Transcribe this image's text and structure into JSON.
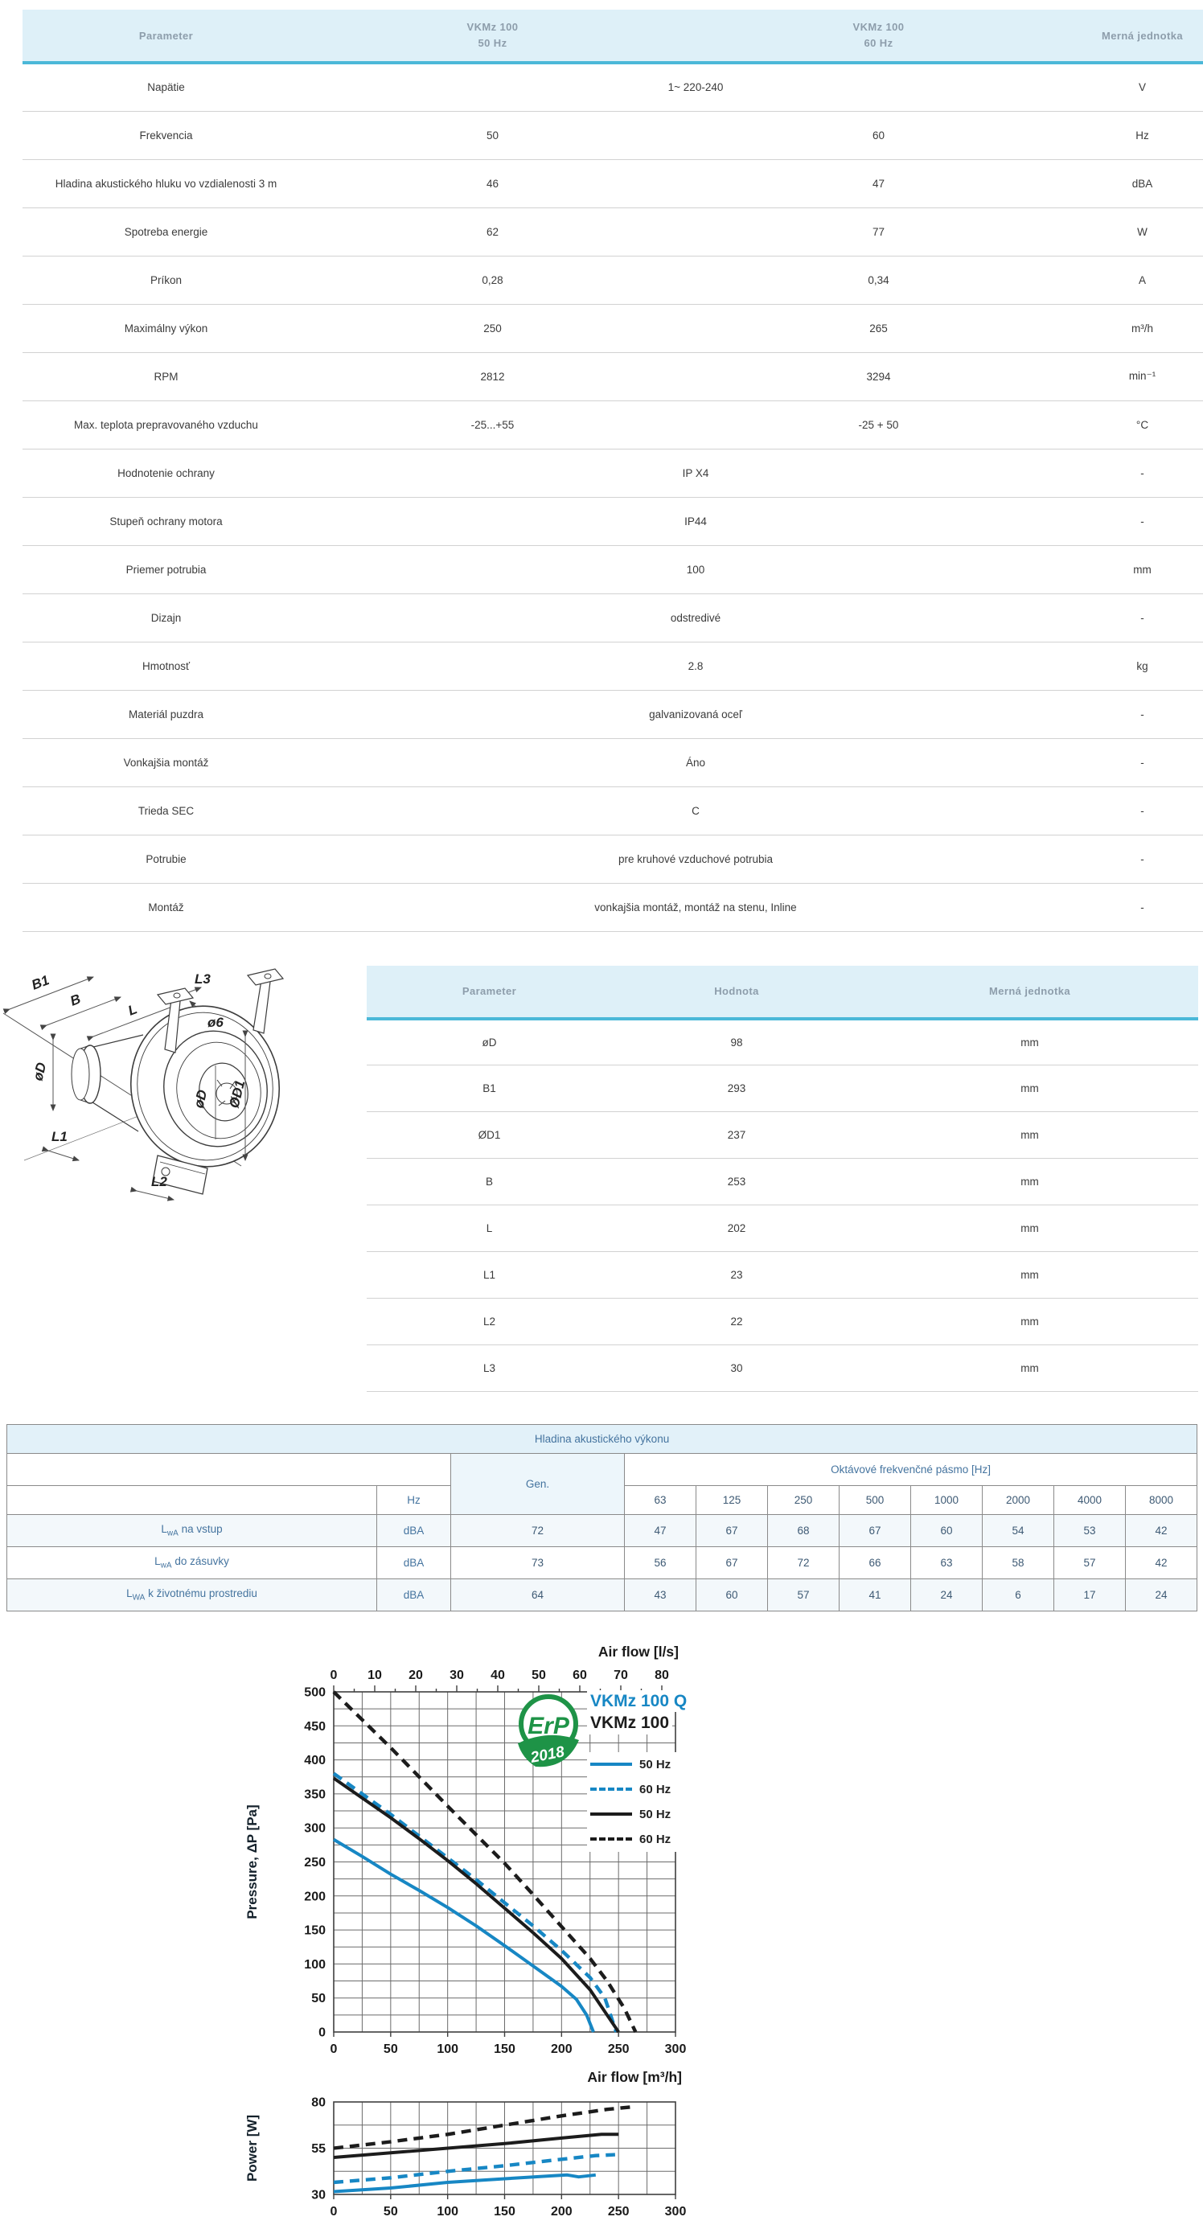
{
  "colors": {
    "accent_teal": "#4bb8d8",
    "header_bg": "#def0f8",
    "header_text": "#8d9dab",
    "blue_text": "#45749f",
    "chart_blue": "#1787c4",
    "chart_black": "#1c1c1c",
    "erp_green": "#1e9347"
  },
  "main_table": {
    "headers": {
      "param": "Parameter",
      "col50_line1": "VKMz 100",
      "col50_line2": "50 Hz",
      "col60_line1": "VKMz 100",
      "col60_line2": "60 Hz",
      "unit": "Merná jednotka"
    },
    "rows": [
      {
        "param": "Napätie",
        "value": "1~ 220-240",
        "unit": "V"
      },
      {
        "param": "Frekvencia",
        "v50": "50",
        "v60": "60",
        "unit": "Hz"
      },
      {
        "param": "Hladina akustického hluku vo vzdialenosti 3 m",
        "v50": "46",
        "v60": "47",
        "unit": "dBA"
      },
      {
        "param": "Spotreba energie",
        "v50": "62",
        "v60": "77",
        "unit": "W"
      },
      {
        "param": "Príkon",
        "v50": "0,28",
        "v60": "0,34",
        "unit": "A"
      },
      {
        "param": "Maximálny výkon",
        "v50": "250",
        "v60": "265",
        "unit": "m³/h"
      },
      {
        "param": "RPM",
        "v50": "2812",
        "v60": "3294",
        "unit": "min⁻¹"
      },
      {
        "param": "Max. teplota prepravovaného vzduchu",
        "v50": "-25...+55",
        "v60": "-25 + 50",
        "unit": "°C"
      },
      {
        "param": "Hodnotenie ochrany",
        "value": "IP X4",
        "unit": "-"
      },
      {
        "param": "Stupeň ochrany motora",
        "value": "IP44",
        "unit": "-"
      },
      {
        "param": "Priemer potrubia",
        "value": "100",
        "unit": "mm"
      },
      {
        "param": "Dizajn",
        "value": "odstredivé",
        "unit": "-"
      },
      {
        "param": "Hmotnosť",
        "value": "2.8",
        "unit": "kg"
      },
      {
        "param": "Materiál puzdra",
        "value": "galvanizovaná oceľ",
        "unit": "-"
      },
      {
        "param": "Vonkajšia montáž",
        "value": "Áno",
        "unit": "-"
      },
      {
        "param": "Trieda SEC",
        "value": "C",
        "unit": "-"
      },
      {
        "param": "Potrubie",
        "value": "pre kruhové vzduchové potrubia",
        "unit": "-"
      },
      {
        "param": "Montáž",
        "value": "vonkajšia montáž, montáž na stenu, Inline",
        "unit": "-"
      }
    ]
  },
  "dims_section": {
    "drawing_labels": [
      "B1",
      "B",
      "L",
      "L3",
      "ø6",
      "øD",
      "øD",
      "ØD1",
      "L1",
      "L2"
    ],
    "table": {
      "headers": {
        "param": "Parameter",
        "value": "Hodnota",
        "unit": "Merná jednotka"
      },
      "rows": [
        {
          "param": "øD",
          "value": "98",
          "unit": "mm"
        },
        {
          "param": "B1",
          "value": "293",
          "unit": "mm"
        },
        {
          "param": "ØD1",
          "value": "237",
          "unit": "mm"
        },
        {
          "param": "B",
          "value": "253",
          "unit": "mm"
        },
        {
          "param": "L",
          "value": "202",
          "unit": "mm"
        },
        {
          "param": "L1",
          "value": "23",
          "unit": "mm"
        },
        {
          "param": "L2",
          "value": "22",
          "unit": "mm"
        },
        {
          "param": "L3",
          "value": "30",
          "unit": "mm"
        }
      ]
    }
  },
  "acoustic": {
    "title": "Hladina akustického výkonu",
    "octave_header": "Oktávové frekvenčné pásmo [Hz]",
    "gen_label": "Gen.",
    "hz_label": "Hz",
    "bands": [
      "63",
      "125",
      "250",
      "500",
      "1000",
      "2000",
      "4000",
      "8000"
    ],
    "rows": [
      {
        "l": "L",
        "sub": "wA",
        "rest": "na vstup",
        "unit": "dBA",
        "gen": "72",
        "bands": [
          "47",
          "67",
          "68",
          "67",
          "60",
          "54",
          "53",
          "42"
        ]
      },
      {
        "l": "L",
        "sub": "wA",
        "rest": "do zásuvky",
        "unit": "dBA",
        "gen": "73",
        "bands": [
          "56",
          "67",
          "72",
          "66",
          "63",
          "58",
          "57",
          "42"
        ]
      },
      {
        "l": "L",
        "sub": "WA",
        "rest": "k životnému prostrediu",
        "unit": "dBA",
        "gen": "64",
        "bands": [
          "43",
          "60",
          "57",
          "41",
          "24",
          "6",
          "17",
          "24"
        ]
      }
    ]
  },
  "legend": {
    "model_q": "VKMz 100 Q",
    "model": "VKMz 100",
    "items": [
      {
        "label": "50 Hz",
        "color": "#1787c4",
        "style": "solid"
      },
      {
        "label": "60 Hz",
        "color": "#1787c4",
        "style": "dashed"
      },
      {
        "label": "50 Hz",
        "color": "#1c1c1c",
        "style": "solid"
      },
      {
        "label": "60 Hz",
        "color": "#1c1c1c",
        "style": "dashed"
      }
    ]
  },
  "erp": {
    "text": "ErP",
    "year": "2018"
  },
  "chart_data": [
    {
      "type": "line",
      "title": "Pressure vs air flow",
      "xlabel_top": "Air flow [l/s]",
      "xlabel": "Air flow [m³/h]",
      "ylabel": "Pressure, ΔP [Pa]",
      "xlim": [
        0,
        300
      ],
      "ylim": [
        0,
        500
      ],
      "x_ticks": [
        0,
        50,
        100,
        150,
        200,
        250,
        300
      ],
      "y_ticks": [
        0,
        50,
        100,
        150,
        200,
        250,
        300,
        350,
        400,
        450,
        500
      ],
      "grid_step_x": 25,
      "grid_step_y": 25,
      "grid": true,
      "legend_position": "top-right",
      "top_axis": {
        "ticks": [
          0,
          10,
          20,
          30,
          40,
          50,
          60,
          70,
          80
        ],
        "minor_step": 5,
        "factor": 3.6
      },
      "series": [
        {
          "name": "VKMz 100 Q 50 Hz",
          "color": "#1787c4",
          "style": "solid",
          "points": [
            [
              0,
              283
            ],
            [
              25,
              258
            ],
            [
              50,
              232
            ],
            [
              75,
              208
            ],
            [
              100,
              183
            ],
            [
              125,
              156
            ],
            [
              150,
              127
            ],
            [
              175,
              97
            ],
            [
              200,
              67
            ],
            [
              213,
              48
            ],
            [
              222,
              25
            ],
            [
              228,
              0
            ]
          ]
        },
        {
          "name": "VKMz 100 Q 60 Hz",
          "color": "#1787c4",
          "style": "dashed",
          "points": [
            [
              0,
              380
            ],
            [
              25,
              350
            ],
            [
              50,
              320
            ],
            [
              75,
              288
            ],
            [
              100,
              256
            ],
            [
              125,
              224
            ],
            [
              150,
              190
            ],
            [
              175,
              156
            ],
            [
              200,
              120
            ],
            [
              225,
              80
            ],
            [
              238,
              50
            ],
            [
              248,
              0
            ]
          ]
        },
        {
          "name": "VKMz 100 50 Hz",
          "color": "#1c1c1c",
          "style": "solid",
          "points": [
            [
              0,
              373
            ],
            [
              25,
              344
            ],
            [
              50,
              315
            ],
            [
              75,
              284
            ],
            [
              100,
              252
            ],
            [
              125,
              218
            ],
            [
              150,
              182
            ],
            [
              175,
              146
            ],
            [
              200,
              108
            ],
            [
              225,
              62
            ],
            [
              250,
              0
            ]
          ]
        },
        {
          "name": "VKMz 100 60 Hz",
          "color": "#1c1c1c",
          "style": "dashed",
          "points": [
            [
              0,
              500
            ],
            [
              25,
              459
            ],
            [
              50,
              418
            ],
            [
              75,
              375
            ],
            [
              100,
              332
            ],
            [
              125,
              290
            ],
            [
              150,
              248
            ],
            [
              175,
              202
            ],
            [
              200,
              155
            ],
            [
              225,
              108
            ],
            [
              240,
              75
            ],
            [
              255,
              35
            ],
            [
              265,
              0
            ]
          ]
        }
      ]
    },
    {
      "type": "line",
      "title": "Power vs air flow",
      "ylabel": "Power [W]",
      "xlim": [
        0,
        300
      ],
      "ylim": [
        30,
        80
      ],
      "x_ticks": [
        0,
        50,
        100,
        150,
        200,
        250,
        300
      ],
      "y_ticks": [
        30,
        55,
        80
      ],
      "grid_step_x": 25,
      "grid_step_y": 12.5,
      "grid": true,
      "series": [
        {
          "name": "VKMz 100 Q 50 Hz",
          "color": "#1787c4",
          "style": "solid",
          "points": [
            [
              0,
              31.5
            ],
            [
              50,
              33.5
            ],
            [
              100,
              36.5
            ],
            [
              150,
              38.5
            ],
            [
              190,
              40
            ],
            [
              205,
              40.5
            ],
            [
              215,
              39.5
            ],
            [
              230,
              40.5
            ]
          ]
        },
        {
          "name": "VKMz 100 Q 60 Hz",
          "color": "#1787c4",
          "style": "dashed",
          "points": [
            [
              0,
              36.5
            ],
            [
              50,
              39
            ],
            [
              100,
              42.5
            ],
            [
              150,
              45.5
            ],
            [
              200,
              49
            ],
            [
              230,
              51
            ],
            [
              247,
              51.5
            ]
          ]
        },
        {
          "name": "VKMz 100 50 Hz",
          "color": "#1c1c1c",
          "style": "solid",
          "points": [
            [
              0,
              50
            ],
            [
              50,
              52.5
            ],
            [
              100,
              55
            ],
            [
              150,
              57.5
            ],
            [
              200,
              60.5
            ],
            [
              235,
              62.5
            ],
            [
              250,
              62.5
            ]
          ]
        },
        {
          "name": "VKMz 100 60 Hz",
          "color": "#1c1c1c",
          "style": "dashed",
          "points": [
            [
              0,
              55
            ],
            [
              50,
              58.5
            ],
            [
              100,
              62.5
            ],
            [
              150,
              67.5
            ],
            [
              200,
              72.5
            ],
            [
              240,
              76
            ],
            [
              265,
              77.5
            ]
          ]
        }
      ]
    }
  ]
}
